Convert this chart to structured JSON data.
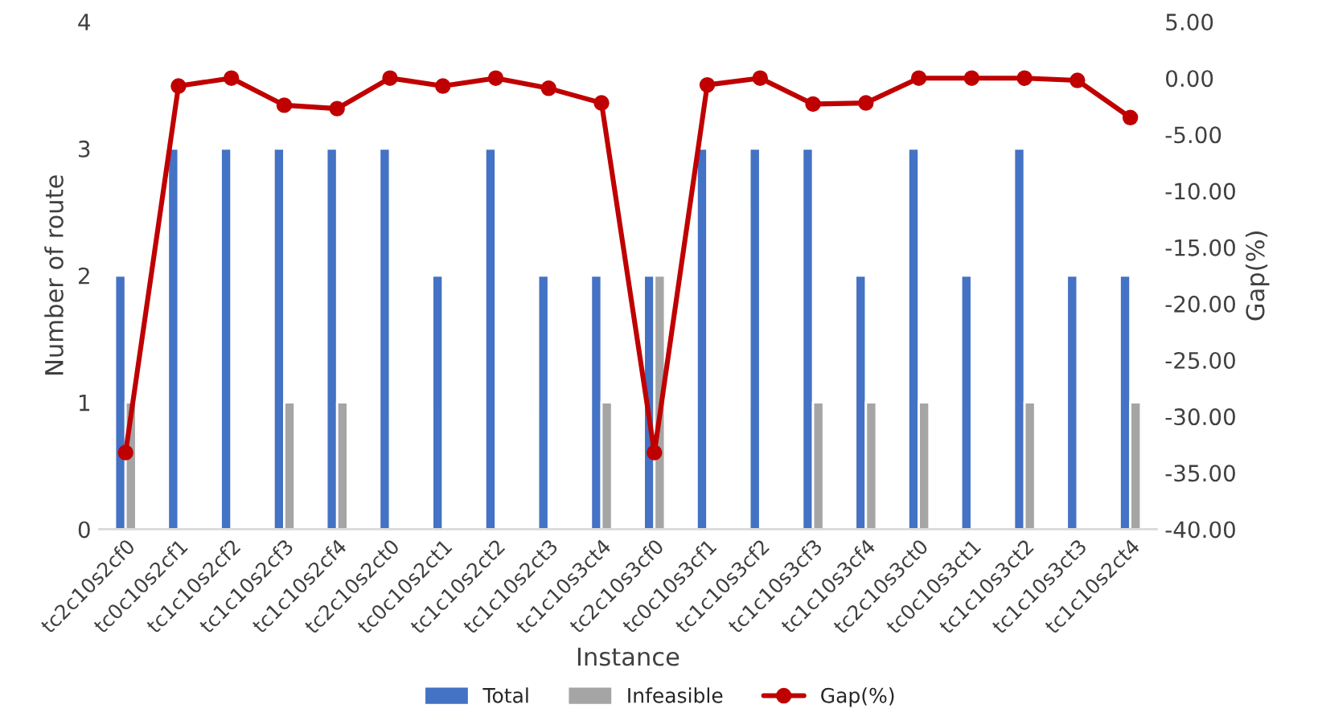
{
  "chart_data": {
    "type": "bar",
    "xlabel": "Instance",
    "ylabel": "Number of route",
    "y2label": "Gap(%)",
    "categories": [
      "tc2c10s2cf0",
      "tc0c10s2cf1",
      "tc1c10s2cf2",
      "tc1c10s2cf3",
      "tc1c10s2cf4",
      "tc2c10s2ct0",
      "tc0c10s2ct1",
      "tc1c10s2ct2",
      "tc1c10s2ct3",
      "tc1c10s3ct4",
      "tc2c10s3cf0",
      "tc0c10s3cf1",
      "tc1c10s3cf2",
      "tc1c10s3cf3",
      "tc1c10s3cf4",
      "tc2c10s3ct0",
      "tc0c10s3ct1",
      "tc1c10s3ct2",
      "tc1c10s3ct3",
      "tc1c10s2ct4"
    ],
    "series": [
      {
        "name": "Total",
        "color": "#4472c4",
        "values": [
          2,
          3,
          3,
          3,
          3,
          3,
          2,
          3,
          2,
          2,
          2,
          3,
          3,
          3,
          2,
          3,
          2,
          3,
          2,
          2
        ]
      },
      {
        "name": "Infeasible",
        "color": "#a5a5a5",
        "values": [
          1,
          0,
          0,
          1,
          1,
          0,
          0,
          0,
          0,
          1,
          2,
          0,
          0,
          1,
          1,
          1,
          0,
          1,
          0,
          1
        ]
      },
      {
        "name": "Gap(%)",
        "type": "line",
        "axis": "y2",
        "color": "#c00000",
        "marker": "circle",
        "values": [
          -33.2,
          -0.7,
          0,
          -2.4,
          -2.7,
          0,
          -0.7,
          0,
          -0.9,
          -2.2,
          -33.2,
          -0.6,
          0,
          -2.3,
          -2.2,
          0,
          0,
          0,
          -0.2,
          -3.5
        ]
      }
    ],
    "ylim": [
      0,
      4
    ],
    "yticks": [
      0,
      1,
      2,
      3,
      4
    ],
    "y2lim": [
      -40,
      5
    ],
    "y2ticks": [
      {
        "value": -40,
        "label": "-40.00"
      },
      {
        "value": -35,
        "label": "-35.00"
      },
      {
        "value": -30,
        "label": "-30.00"
      },
      {
        "value": -25,
        "label": "-25.00"
      },
      {
        "value": -20,
        "label": "-20.00"
      },
      {
        "value": -15,
        "label": "-15.00"
      },
      {
        "value": -10,
        "label": "-10.00"
      },
      {
        "value": -5,
        "label": "-5.00"
      },
      {
        "value": 0,
        "label": "0.00"
      },
      {
        "value": 5,
        "label": "5.00"
      }
    ],
    "grid": false,
    "legend": "bottom"
  }
}
